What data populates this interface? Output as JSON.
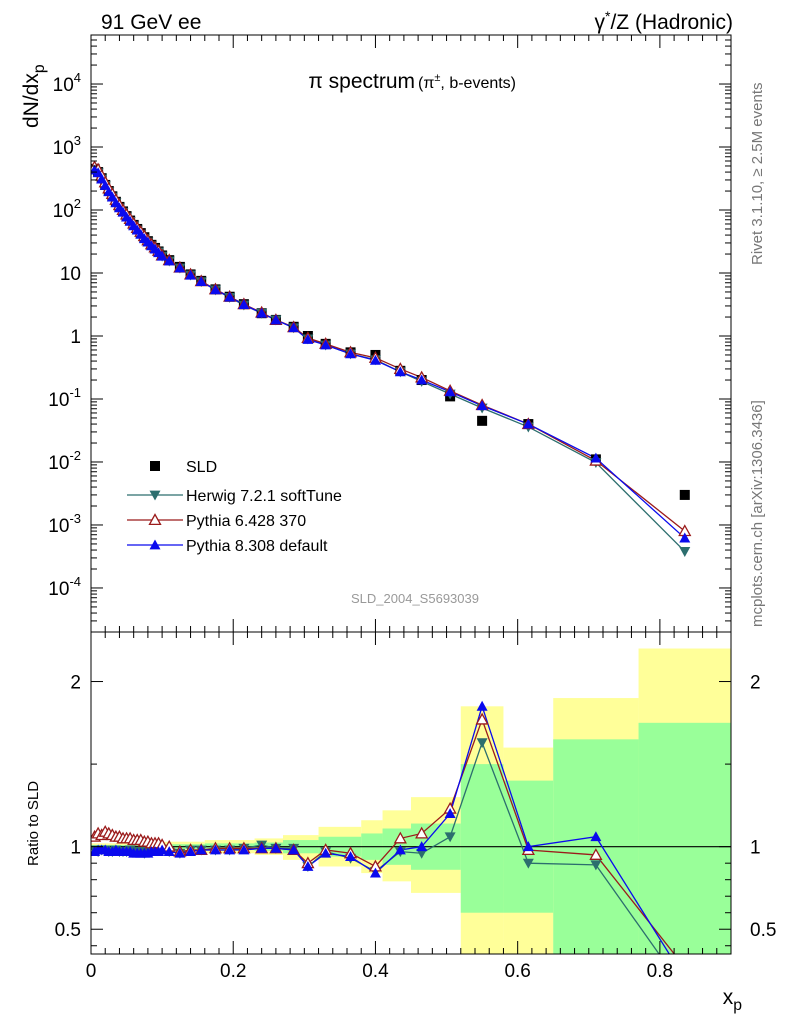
{
  "header": {
    "left_label": "91 GeV ee",
    "right_label": "γ*/Z (Hadronic)"
  },
  "side_labels": {
    "rivet": "Rivet 3.1.10, ≥ 2.5M events",
    "mcplots": "mcplots.cern.ch [arXiv:1306.3436]"
  },
  "chart_data": [
    {
      "type": "scatter",
      "panel": "main",
      "title": "π spectrum",
      "subtitle": "(π±, b-events)",
      "ylabel": "dN/dx_p",
      "yscale": "log",
      "ylim": [
        2e-05,
        60000
      ],
      "xlim": [
        0,
        0.9
      ],
      "yticks": [
        {
          "label": "10^-4",
          "value": 0.0001
        },
        {
          "label": "10^-3",
          "value": 0.001
        },
        {
          "label": "10^-2",
          "value": 0.01
        },
        {
          "label": "10^-1",
          "value": 0.1
        },
        {
          "label": "1",
          "value": 1
        },
        {
          "label": "10",
          "value": 10
        },
        {
          "label": "10^2",
          "value": 100
        },
        {
          "label": "10^3",
          "value": 1000
        },
        {
          "label": "10^4",
          "value": 10000
        }
      ],
      "watermark": "SLD_2004_S5693039",
      "legend_position": "bottom-left",
      "x": [
        0.005,
        0.01,
        0.015,
        0.02,
        0.025,
        0.03,
        0.035,
        0.04,
        0.045,
        0.05,
        0.055,
        0.06,
        0.065,
        0.07,
        0.075,
        0.08,
        0.085,
        0.09,
        0.095,
        0.1,
        0.11,
        0.125,
        0.14,
        0.155,
        0.175,
        0.195,
        0.215,
        0.24,
        0.26,
        0.285,
        0.305,
        0.33,
        0.365,
        0.4,
        0.435,
        0.465,
        0.505,
        0.55,
        0.615,
        0.71,
        0.835
      ],
      "series": [
        {
          "name": "SLD",
          "color": "#000000",
          "marker": "square",
          "values": [
            450,
            400,
            320,
            250,
            200,
            165,
            135,
            112,
            95,
            80,
            68,
            58,
            50,
            43,
            37,
            32,
            28,
            25,
            22,
            19,
            16,
            12.5,
            9.5,
            7.5,
            5.5,
            4.2,
            3.2,
            2.3,
            1.8,
            1.4,
            1.0,
            0.75,
            0.55,
            0.5,
            0.28,
            0.2,
            0.11,
            0.045,
            0.04,
            0.011,
            0.003
          ]
        },
        {
          "name": "Herwig 7.2.1 softTune",
          "color": "#2c6e6e",
          "marker": "triangle-down",
          "values": [
            440,
            390,
            310,
            245,
            195,
            160,
            130,
            108,
            92,
            77,
            66,
            56,
            48,
            41,
            35,
            31,
            27,
            24,
            21.5,
            18.5,
            15.5,
            12,
            9.3,
            7.3,
            5.4,
            4.1,
            3.1,
            2.3,
            1.8,
            1.35,
            0.9,
            0.72,
            0.52,
            0.42,
            0.27,
            0.19,
            0.12,
            0.072,
            0.036,
            0.0098,
            0.00038
          ]
        },
        {
          "name": "Pythia 6.428 370",
          "color": "#9b1b1b",
          "marker": "triangle-up-open",
          "values": [
            480,
            440,
            350,
            275,
            220,
            180,
            145,
            120,
            100,
            85,
            72,
            61,
            52,
            45,
            38.5,
            33,
            28.5,
            25.5,
            22.5,
            19,
            16,
            12.2,
            9.5,
            7.4,
            5.5,
            4.2,
            3.2,
            2.35,
            1.8,
            1.38,
            0.93,
            0.75,
            0.55,
            0.45,
            0.3,
            0.22,
            0.135,
            0.08,
            0.04,
            0.0105,
            0.0008
          ]
        },
        {
          "name": "Pythia 8.308 default",
          "color": "#0a0aee",
          "marker": "triangle-up",
          "values": [
            430,
            390,
            310,
            245,
            195,
            160,
            130,
            108,
            92,
            77,
            66,
            56,
            48,
            41,
            35,
            31,
            27,
            24,
            21,
            18.5,
            15.5,
            12,
            9.2,
            7.3,
            5.4,
            4.15,
            3.15,
            2.3,
            1.8,
            1.35,
            0.88,
            0.72,
            0.52,
            0.41,
            0.27,
            0.2,
            0.13,
            0.078,
            0.04,
            0.0115,
            0.00062
          ]
        }
      ]
    },
    {
      "type": "line",
      "panel": "ratio",
      "ylabel": "Ratio to SLD",
      "xlabel": "x_p",
      "ylim": [
        0.35,
        2.3
      ],
      "xlim": [
        0,
        0.9
      ],
      "yticks": [
        {
          "label": "0.5",
          "value": 0.5
        },
        {
          "label": "1",
          "value": 1
        },
        {
          "label": "2",
          "value": 2
        }
      ],
      "xticks": [
        {
          "label": "0",
          "value": 0
        },
        {
          "label": "0.2",
          "value": 0.2
        },
        {
          "label": "0.4",
          "value": 0.4
        },
        {
          "label": "0.6",
          "value": 0.6
        },
        {
          "label": "0.8",
          "value": 0.8
        }
      ],
      "band_colors": {
        "inner": "#99ff99",
        "outer": "#ffff99"
      },
      "bands": [
        {
          "x0": 0.0,
          "x1": 0.1,
          "inner": [
            0.99,
            1.01
          ],
          "outer": [
            0.98,
            1.02
          ]
        },
        {
          "x0": 0.1,
          "x1": 0.16,
          "inner": [
            0.985,
            1.015
          ],
          "outer": [
            0.97,
            1.03
          ]
        },
        {
          "x0": 0.16,
          "x1": 0.23,
          "inner": [
            0.98,
            1.02
          ],
          "outer": [
            0.96,
            1.04
          ]
        },
        {
          "x0": 0.23,
          "x1": 0.27,
          "inner": [
            0.975,
            1.025
          ],
          "outer": [
            0.95,
            1.05
          ]
        },
        {
          "x0": 0.27,
          "x1": 0.32,
          "inner": [
            0.96,
            1.04
          ],
          "outer": [
            0.92,
            1.07
          ]
        },
        {
          "x0": 0.32,
          "x1": 0.38,
          "inner": [
            0.94,
            1.06
          ],
          "outer": [
            0.88,
            1.12
          ]
        },
        {
          "x0": 0.38,
          "x1": 0.41,
          "inner": [
            0.92,
            1.08
          ],
          "outer": [
            0.84,
            1.16
          ]
        },
        {
          "x0": 0.41,
          "x1": 0.45,
          "inner": [
            0.89,
            1.11
          ],
          "outer": [
            0.79,
            1.22
          ]
        },
        {
          "x0": 0.45,
          "x1": 0.52,
          "inner": [
            0.86,
            1.14
          ],
          "outer": [
            0.72,
            1.3
          ]
        },
        {
          "x0": 0.52,
          "x1": 0.58,
          "inner": [
            0.6,
            1.5
          ],
          "outer": [
            0.2,
            1.85
          ]
        },
        {
          "x0": 0.58,
          "x1": 0.65,
          "inner": [
            0.6,
            1.4
          ],
          "outer": [
            0.2,
            1.6
          ]
        },
        {
          "x0": 0.65,
          "x1": 0.77,
          "inner": [
            0.3,
            1.65
          ],
          "outer": [
            0.2,
            1.9
          ]
        },
        {
          "x0": 0.77,
          "x1": 0.9,
          "inner": [
            0.3,
            1.75
          ],
          "outer": [
            0.2,
            2.2
          ]
        }
      ],
      "x": [
        0.005,
        0.01,
        0.015,
        0.02,
        0.025,
        0.03,
        0.035,
        0.04,
        0.045,
        0.05,
        0.055,
        0.06,
        0.065,
        0.07,
        0.075,
        0.08,
        0.085,
        0.09,
        0.095,
        0.1,
        0.11,
        0.125,
        0.14,
        0.155,
        0.175,
        0.195,
        0.215,
        0.24,
        0.26,
        0.285,
        0.305,
        0.33,
        0.365,
        0.4,
        0.435,
        0.465,
        0.505,
        0.55,
        0.615,
        0.71,
        0.835
      ],
      "series": [
        {
          "name": "Herwig 7.2.1 softTune",
          "color": "#2c6e6e",
          "marker": "triangle-down",
          "values": [
            0.98,
            0.97,
            0.98,
            0.98,
            0.97,
            0.97,
            0.98,
            0.97,
            0.97,
            0.97,
            0.98,
            0.97,
            0.97,
            0.97,
            0.96,
            0.97,
            0.97,
            0.98,
            0.98,
            0.98,
            0.97,
            0.96,
            0.98,
            0.98,
            0.98,
            0.98,
            0.99,
            1.01,
            0.99,
            0.99,
            0.88,
            0.97,
            0.93,
            0.85,
            0.97,
            0.96,
            1.06,
            1.63,
            0.9,
            0.89,
            0.13
          ]
        },
        {
          "name": "Pythia 6.428 370",
          "color": "#9b1b1b",
          "marker": "triangle-up-open",
          "values": [
            1.06,
            1.08,
            1.07,
            1.09,
            1.08,
            1.07,
            1.06,
            1.06,
            1.05,
            1.05,
            1.05,
            1.04,
            1.04,
            1.04,
            1.03,
            1.03,
            1.02,
            1.02,
            1.02,
            1.01,
            1.0,
            0.97,
            0.98,
            0.98,
            0.99,
            0.99,
            0.99,
            0.99,
            0.99,
            0.98,
            0.9,
            0.98,
            0.96,
            0.88,
            1.05,
            1.08,
            1.23,
            1.77,
            0.98,
            0.95,
            0.27
          ]
        },
        {
          "name": "Pythia 8.308 default",
          "color": "#0a0aee",
          "marker": "triangle-up",
          "values": [
            0.97,
            0.98,
            0.98,
            0.98,
            0.97,
            0.97,
            0.98,
            0.97,
            0.97,
            0.97,
            0.97,
            0.96,
            0.96,
            0.96,
            0.96,
            0.96,
            0.97,
            0.97,
            0.97,
            0.98,
            0.97,
            0.96,
            0.97,
            0.98,
            0.98,
            0.98,
            0.98,
            0.99,
            0.99,
            0.98,
            0.88,
            0.96,
            0.94,
            0.84,
            0.98,
            1.0,
            1.2,
            1.85,
            1.0,
            1.06,
            0.2
          ]
        }
      ]
    }
  ]
}
